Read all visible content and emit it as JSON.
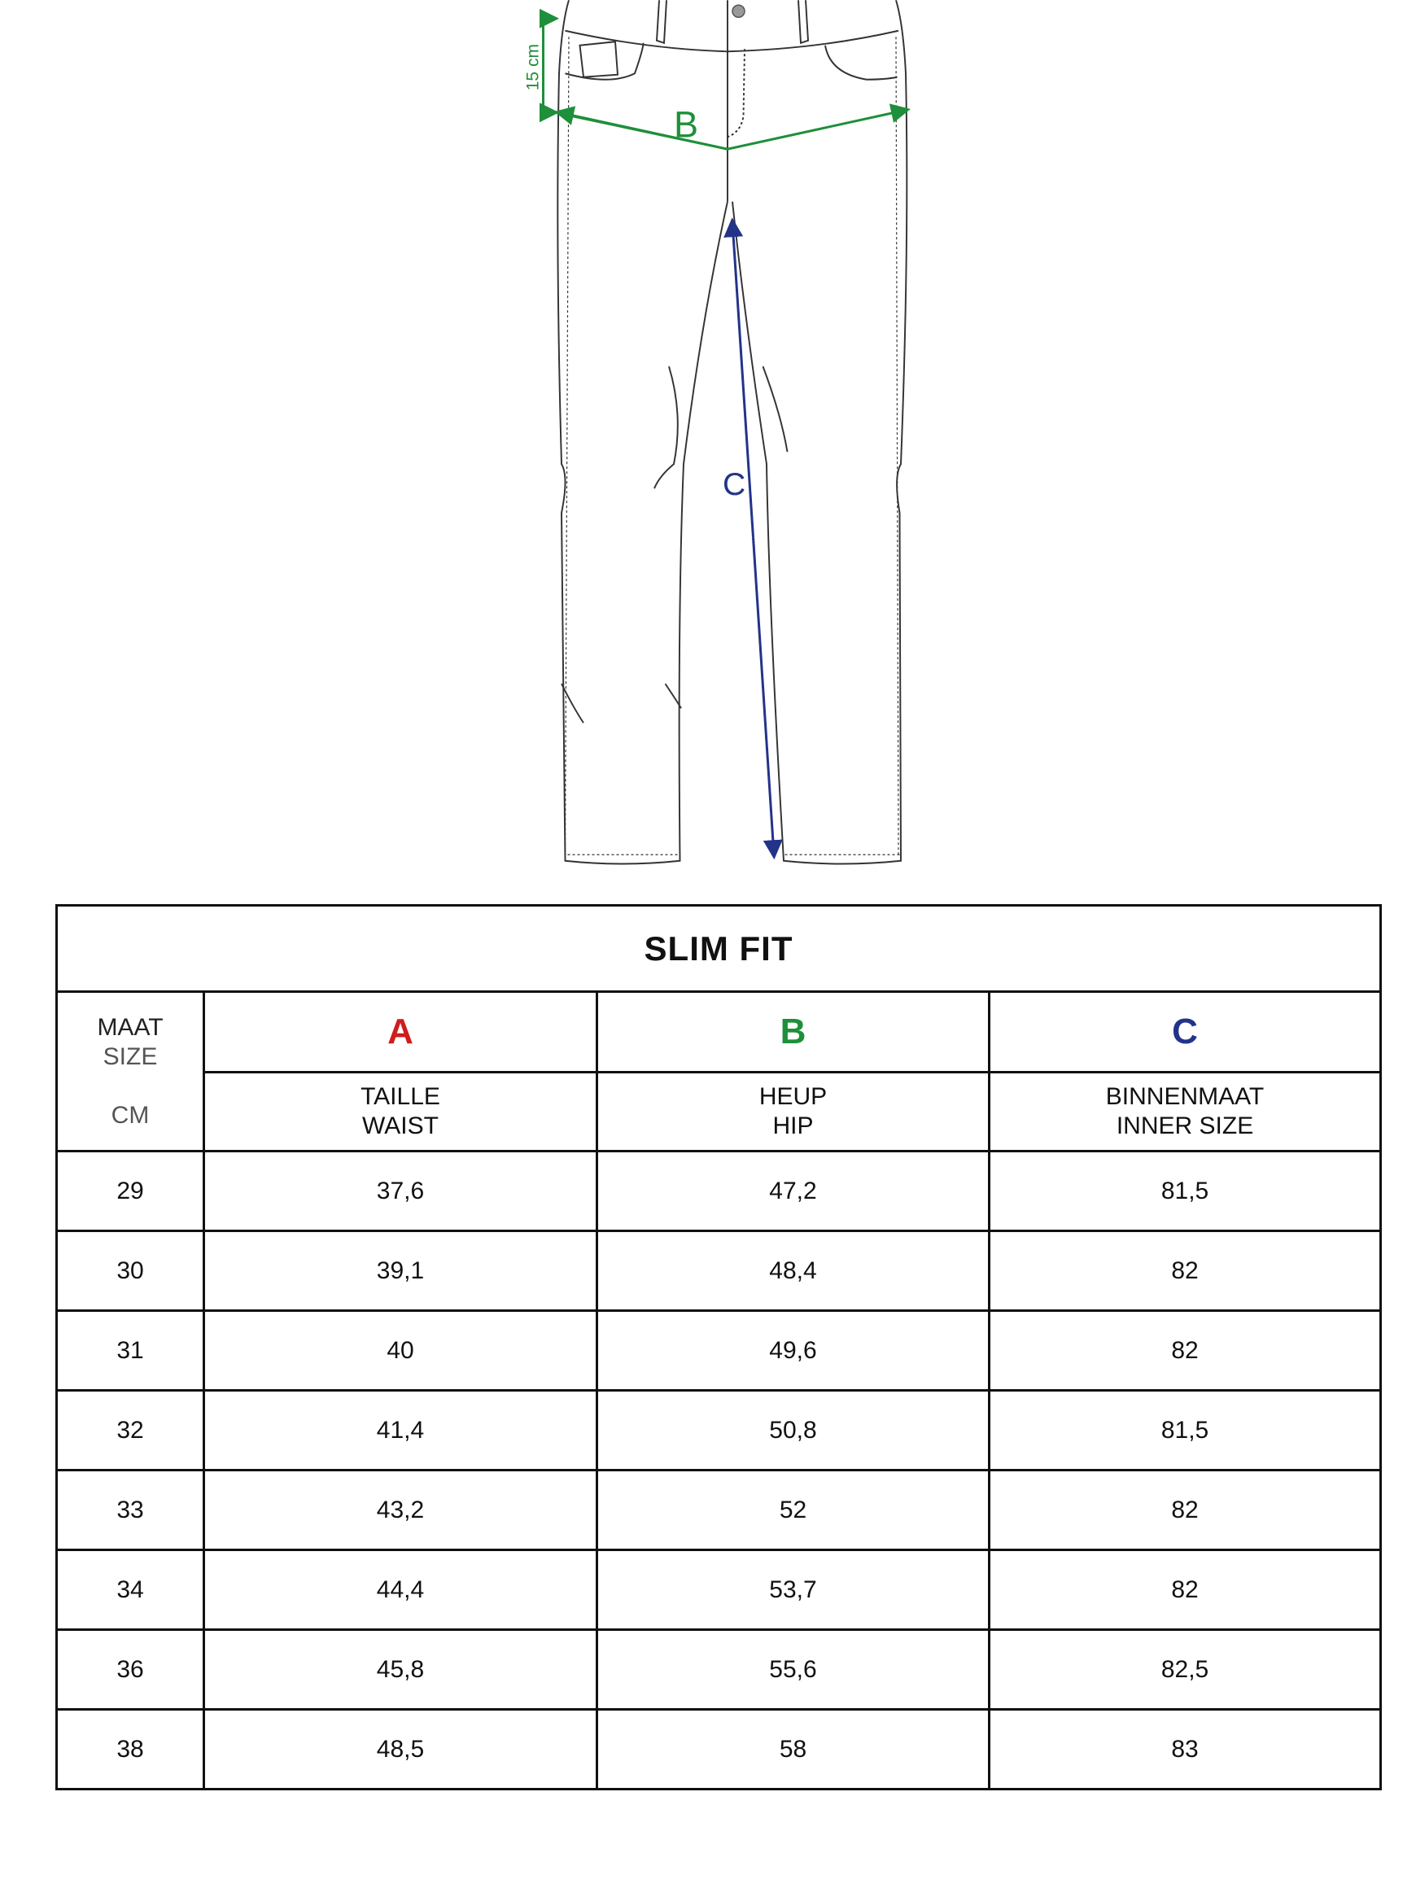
{
  "diagram": {
    "hip_offset_label": "15 cm",
    "hip_label": "B",
    "inseam_label": "C",
    "colors": {
      "hip": "#1e8f3a",
      "inseam": "#23338a",
      "outline": "#333333"
    }
  },
  "table": {
    "title": "SLIM FIT",
    "size_header": {
      "line1": "MAAT",
      "line2": "SIZE",
      "unit": "CM"
    },
    "columns": [
      {
        "letter": "A",
        "color": "#d01c1c",
        "label_nl": "TAILLE",
        "label_en": "WAIST"
      },
      {
        "letter": "B",
        "color": "#1e8f3a",
        "label_nl": "HEUP",
        "label_en": "HIP"
      },
      {
        "letter": "C",
        "color": "#23338a",
        "label_nl": "BINNENMAAT",
        "label_en": "INNER SIZE"
      }
    ],
    "rows": [
      {
        "size": "29",
        "waist": "37,6",
        "hip": "47,2",
        "inner": "81,5"
      },
      {
        "size": "30",
        "waist": "39,1",
        "hip": "48,4",
        "inner": "82"
      },
      {
        "size": "31",
        "waist": "40",
        "hip": "49,6",
        "inner": "82"
      },
      {
        "size": "32",
        "waist": "41,4",
        "hip": "50,8",
        "inner": "81,5"
      },
      {
        "size": "33",
        "waist": "43,2",
        "hip": "52",
        "inner": "82"
      },
      {
        "size": "34",
        "waist": "44,4",
        "hip": "53,7",
        "inner": "82"
      },
      {
        "size": "36",
        "waist": "45,8",
        "hip": "55,6",
        "inner": "82,5"
      },
      {
        "size": "38",
        "waist": "48,5",
        "hip": "58",
        "inner": "83"
      }
    ]
  }
}
